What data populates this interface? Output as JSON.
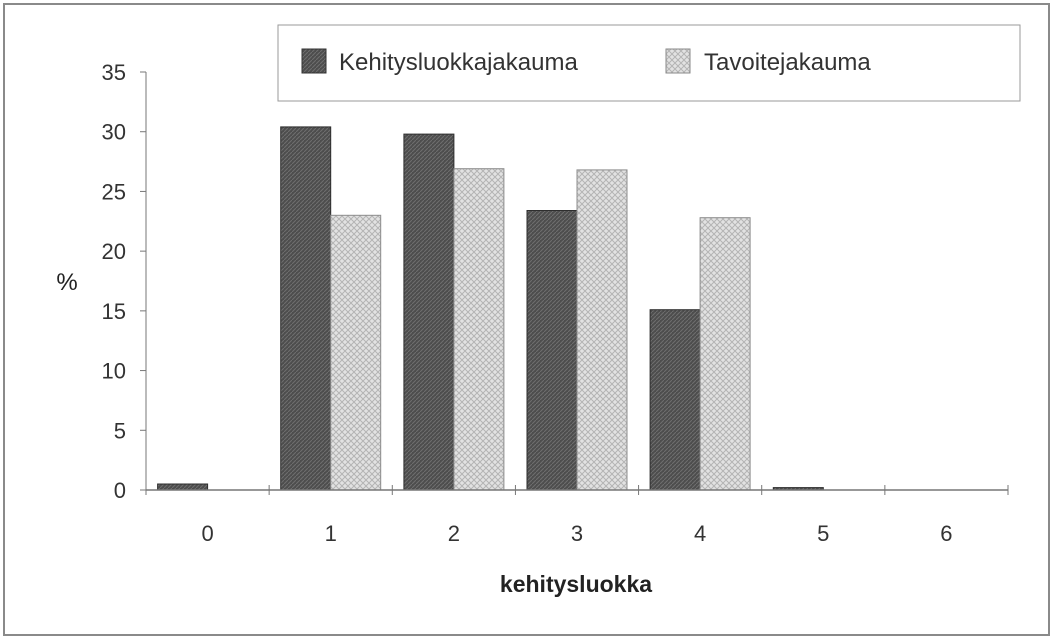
{
  "chart_data": {
    "type": "bar",
    "title": "",
    "xlabel": "kehitysluokka",
    "ylabel": "%",
    "categories": [
      "0",
      "1",
      "2",
      "3",
      "4",
      "5",
      "6"
    ],
    "series": [
      {
        "name": "Kehitysluokkajakauma",
        "values": [
          0.5,
          30.4,
          29.8,
          23.4,
          15.1,
          0.2,
          0
        ]
      },
      {
        "name": "Tavoitejakauma",
        "values": [
          0,
          23,
          26.9,
          26.8,
          22.8,
          0,
          0
        ]
      }
    ],
    "ylim": [
      0,
      35
    ],
    "yticks": [
      0,
      5,
      10,
      15,
      20,
      25,
      30,
      35
    ],
    "grid": false,
    "legend": "top-right",
    "colors": {
      "series_0": "#555555",
      "series_1": "#dcdcdc",
      "axis": "#777777",
      "frame": "#888888"
    }
  }
}
